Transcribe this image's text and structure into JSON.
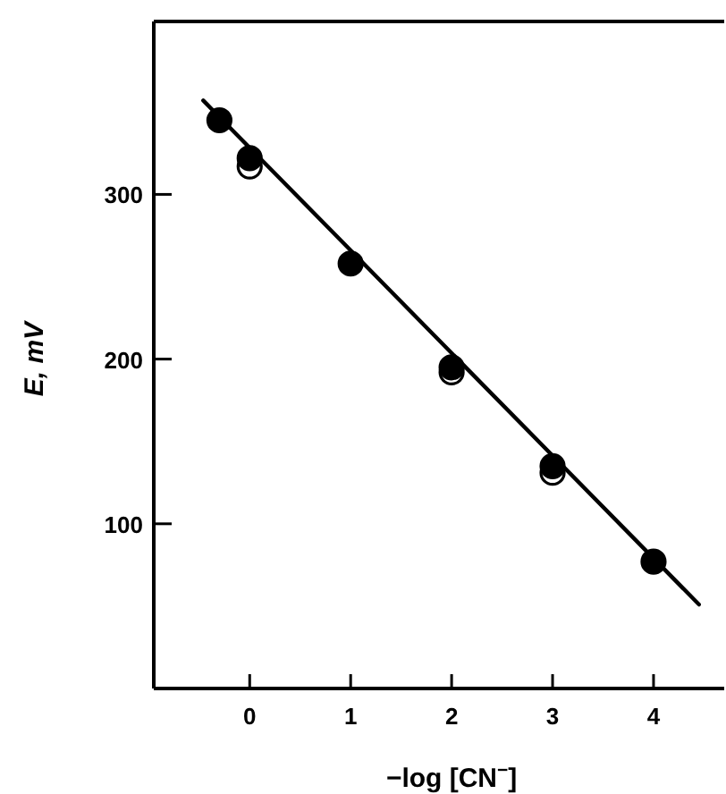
{
  "chart_data": {
    "type": "scatter",
    "xlabel": "−log [CN$^{−}$]",
    "ylabel": "E, mV",
    "xlim": [
      -0.95,
      4.7
    ],
    "ylim": [
      0,
      405
    ],
    "xticks": [
      0,
      1,
      2,
      3,
      4
    ],
    "yticks": [
      100,
      200,
      300
    ],
    "grid": false,
    "marker": "circle",
    "series": [
      {
        "type": "line",
        "x": [
          -0.46,
          4.45
        ],
        "values": [
          357,
          51
        ],
        "color": "#000000",
        "line_style": "solid",
        "marker": "none"
      },
      {
        "x": [
          0,
          2,
          3
        ],
        "values": [
          317,
          192,
          131
        ],
        "color": "#ffffff"
      },
      {
        "x": [
          -0.3,
          0,
          1,
          2,
          3,
          4
        ],
        "values": [
          345,
          322,
          258,
          195,
          135,
          77
        ],
        "color": "#000000"
      }
    ]
  }
}
